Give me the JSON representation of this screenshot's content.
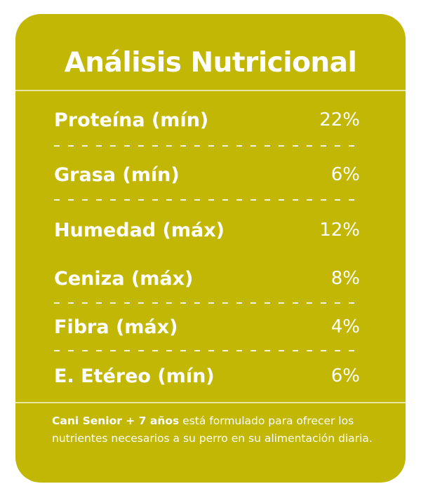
{
  "card": {
    "title": "Análisis Nutricional",
    "rows": [
      {
        "label": "Proteína (mín)",
        "value": "22%"
      },
      {
        "label": "Grasa (mín)",
        "value": "6%"
      },
      {
        "label": "Humedad (máx)",
        "value": "12%"
      },
      {
        "label": "Ceniza (máx)",
        "value": "8%"
      },
      {
        "label": "Fibra (máx)",
        "value": "4%"
      },
      {
        "label": "E. Etéreo (mín)",
        "value": "6%"
      }
    ],
    "footnote": {
      "bold": "Cani Senior + 7 años",
      "text": " está formulado para ofrecer los nutrientes necesarios a su perro en su alimentación diaria."
    }
  },
  "colors": {
    "background": "#c2b705",
    "text": "#ffffff"
  }
}
